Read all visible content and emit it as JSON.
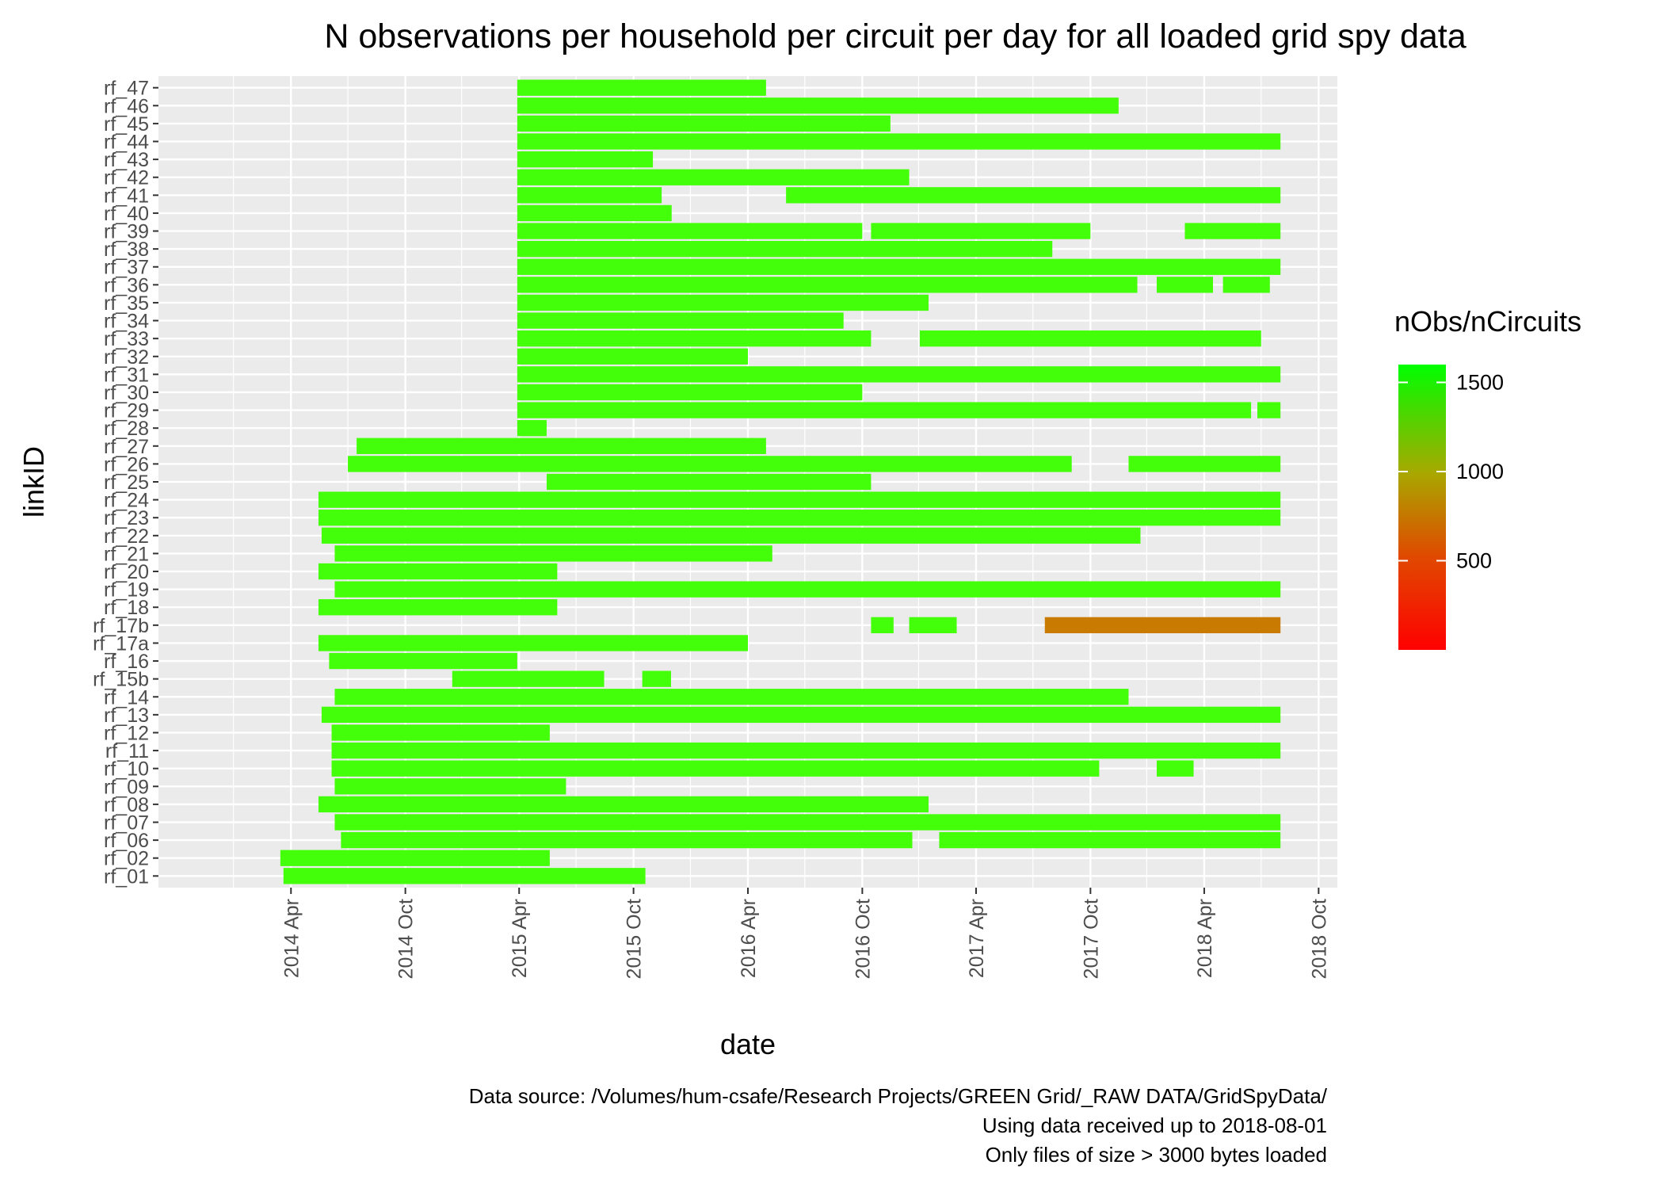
{
  "chart_data": {
    "type": "heatmap",
    "title": "N observations per household per circuit per day for all loaded grid spy data",
    "xlabel": "date",
    "ylabel": "linkID",
    "xlim": [
      "2013-09-01",
      "2018-10-31"
    ],
    "x_ticks": [
      {
        "date": "2014-04-01",
        "label": "2014 Apr"
      },
      {
        "date": "2014-10-01",
        "label": "2014 Oct"
      },
      {
        "date": "2015-04-01",
        "label": "2015 Apr"
      },
      {
        "date": "2015-10-01",
        "label": "2015 Oct"
      },
      {
        "date": "2016-04-01",
        "label": "2016 Apr"
      },
      {
        "date": "2016-10-01",
        "label": "2016 Oct"
      },
      {
        "date": "2017-04-01",
        "label": "2017 Apr"
      },
      {
        "date": "2017-10-01",
        "label": "2017 Oct"
      },
      {
        "date": "2018-04-01",
        "label": "2018 Apr"
      },
      {
        "date": "2018-10-01",
        "label": "2018 Oct"
      }
    ],
    "link_ids": [
      "rf_01",
      "rf_02",
      "rf_06",
      "rf_07",
      "rf_08",
      "rf_09",
      "rf_10",
      "rf_11",
      "rf_12",
      "rf_13",
      "rf_14",
      "rf_15b",
      "rf_16",
      "rf_17a",
      "rf_17b",
      "rf_18",
      "rf_19",
      "rf_20",
      "rf_21",
      "rf_22",
      "rf_23",
      "rf_24",
      "rf_25",
      "rf_26",
      "rf_27",
      "rf_28",
      "rf_29",
      "rf_30",
      "rf_31",
      "rf_32",
      "rf_33",
      "rf_34",
      "rf_35",
      "rf_36",
      "rf_37",
      "rf_38",
      "rf_39",
      "rf_40",
      "rf_41",
      "rf_42",
      "rf_43",
      "rf_44",
      "rf_45",
      "rf_46",
      "rf_47"
    ],
    "legend": {
      "title": "nObs/nCircuits",
      "range": [
        0,
        1600
      ],
      "ticks": [
        {
          "value": 500,
          "label": "500"
        },
        {
          "value": 1000,
          "label": "1000"
        },
        {
          "value": 1500,
          "label": "1500"
        }
      ],
      "colors": [
        "#ff0000",
        "#c08c00",
        "#00ff00"
      ],
      "placement": "right"
    },
    "grid": true,
    "segments": {
      "rf_47": [
        [
          "2015-03-29",
          "2016-04-30",
          1440
        ]
      ],
      "rf_46": [
        [
          "2015-03-29",
          "2017-11-15",
          1440
        ]
      ],
      "rf_45": [
        [
          "2015-03-29",
          "2016-11-15",
          1440
        ]
      ],
      "rf_44": [
        [
          "2015-03-29",
          "2018-08-01",
          1440
        ]
      ],
      "rf_43": [
        [
          "2015-03-29",
          "2015-11-01",
          1440
        ]
      ],
      "rf_42": [
        [
          "2015-03-29",
          "2016-12-15",
          1440
        ]
      ],
      "rf_41": [
        [
          "2015-03-29",
          "2015-11-15",
          1440
        ],
        [
          "2016-06-01",
          "2018-08-01",
          1440
        ]
      ],
      "rf_40": [
        [
          "2015-03-29",
          "2015-12-01",
          1440
        ]
      ],
      "rf_39": [
        [
          "2015-03-29",
          "2016-10-01",
          1440
        ],
        [
          "2016-10-15",
          "2017-10-01",
          1440
        ],
        [
          "2018-03-01",
          "2018-08-01",
          1440
        ]
      ],
      "rf_38": [
        [
          "2015-03-29",
          "2017-08-01",
          1440
        ]
      ],
      "rf_37": [
        [
          "2015-03-29",
          "2018-08-01",
          1440
        ]
      ],
      "rf_36": [
        [
          "2015-03-29",
          "2017-12-15",
          1440
        ],
        [
          "2018-01-15",
          "2018-04-15",
          1440
        ],
        [
          "2018-05-01",
          "2018-07-15",
          1440
        ]
      ],
      "rf_35": [
        [
          "2015-03-29",
          "2017-01-15",
          1440
        ]
      ],
      "rf_34": [
        [
          "2015-03-29",
          "2016-09-01",
          1440
        ]
      ],
      "rf_33": [
        [
          "2015-03-29",
          "2016-10-15",
          1440
        ],
        [
          "2017-01-01",
          "2018-07-01",
          1440
        ]
      ],
      "rf_32": [
        [
          "2015-03-29",
          "2016-04-01",
          1440
        ]
      ],
      "rf_31": [
        [
          "2015-03-29",
          "2018-08-01",
          1440
        ]
      ],
      "rf_30": [
        [
          "2015-03-29",
          "2016-10-01",
          1440
        ]
      ],
      "rf_29": [
        [
          "2015-03-29",
          "2018-06-15",
          1440
        ],
        [
          "2018-06-25",
          "2018-08-01",
          1440
        ]
      ],
      "rf_28": [
        [
          "2015-03-29",
          "2015-05-15",
          1440
        ]
      ],
      "rf_27": [
        [
          "2014-07-15",
          "2016-04-30",
          1440
        ]
      ],
      "rf_26": [
        [
          "2014-07-01",
          "2017-09-01",
          1440
        ],
        [
          "2017-12-01",
          "2018-08-01",
          1440
        ]
      ],
      "rf_25": [
        [
          "2015-05-15",
          "2016-10-15",
          1440
        ]
      ],
      "rf_24": [
        [
          "2014-05-15",
          "2018-08-01",
          1440
        ]
      ],
      "rf_23": [
        [
          "2014-05-15",
          "2018-08-01",
          1440
        ]
      ],
      "rf_22": [
        [
          "2014-05-20",
          "2017-12-20",
          1440
        ]
      ],
      "rf_21": [
        [
          "2014-06-10",
          "2016-05-10",
          1440
        ]
      ],
      "rf_20": [
        [
          "2014-05-15",
          "2015-06-01",
          1440
        ]
      ],
      "rf_19": [
        [
          "2014-06-10",
          "2018-08-01",
          1440
        ]
      ],
      "rf_18": [
        [
          "2014-05-15",
          "2015-06-01",
          1440
        ]
      ],
      "rf_17b": [
        [
          "2016-10-15",
          "2016-11-20",
          1440
        ],
        [
          "2016-12-15",
          "2017-03-01",
          1440
        ],
        [
          "2017-07-20",
          "2018-08-01",
          700
        ]
      ],
      "rf_17a": [
        [
          "2014-05-15",
          "2016-04-01",
          1440
        ]
      ],
      "rf_16": [
        [
          "2014-06-01",
          "2015-03-29",
          1440
        ]
      ],
      "rf_15b": [
        [
          "2014-12-15",
          "2015-08-15",
          1440
        ],
        [
          "2015-10-15",
          "2015-11-30",
          1440
        ]
      ],
      "rf_14": [
        [
          "2014-06-10",
          "2017-12-01",
          1440
        ]
      ],
      "rf_13": [
        [
          "2014-05-20",
          "2018-08-01",
          1440
        ]
      ],
      "rf_12": [
        [
          "2014-06-05",
          "2015-05-20",
          1440
        ]
      ],
      "rf_11": [
        [
          "2014-06-05",
          "2018-08-01",
          1440
        ]
      ],
      "rf_10": [
        [
          "2014-06-05",
          "2017-10-15",
          1440
        ],
        [
          "2018-01-15",
          "2018-03-15",
          1440
        ]
      ],
      "rf_09": [
        [
          "2014-06-10",
          "2015-06-15",
          1440
        ]
      ],
      "rf_08": [
        [
          "2014-05-15",
          "2017-01-15",
          1440
        ]
      ],
      "rf_07": [
        [
          "2014-06-10",
          "2018-08-01",
          1440
        ]
      ],
      "rf_06": [
        [
          "2014-06-20",
          "2016-12-20",
          1440
        ],
        [
          "2017-02-01",
          "2018-08-01",
          1440
        ]
      ],
      "rf_02": [
        [
          "2014-03-15",
          "2015-05-20",
          1440
        ]
      ],
      "rf_01": [
        [
          "2014-03-20",
          "2015-10-20",
          1440
        ]
      ]
    }
  },
  "caption": {
    "line1": "Data source: /Volumes/hum-csafe/Research Projects/GREEN Grid/_RAW DATA/GridSpyData/",
    "line2": "Using data received up to 2018-08-01",
    "line3": "Only files of size > 3000 bytes loaded"
  }
}
